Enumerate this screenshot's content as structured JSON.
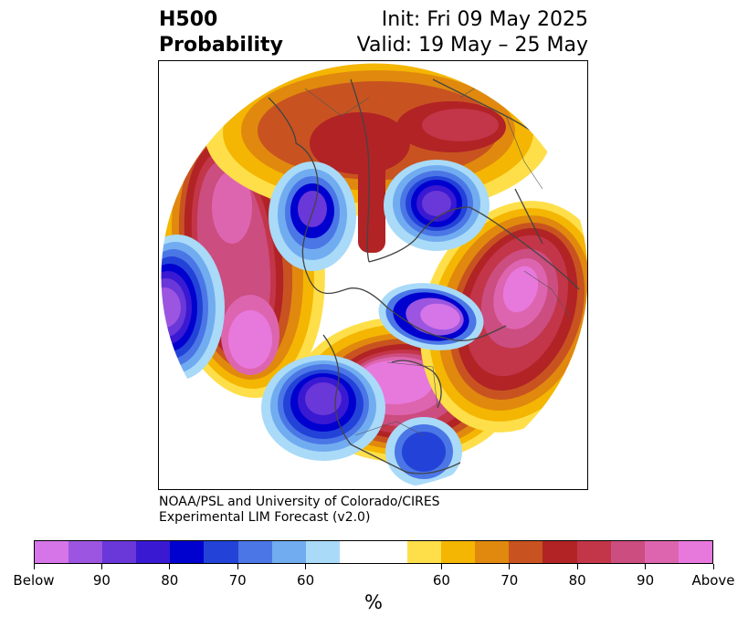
{
  "title": {
    "line1": "H500",
    "line2": "Probability"
  },
  "init": {
    "line1": "Init: Fri 09 May 2025",
    "line2": "Valid: 19 May – 25 May"
  },
  "credit": {
    "line1": "NOAA/PSL and University of Colorado/CIRES",
    "line2": "Experimental LIM Forecast (v2.0)"
  },
  "colorbar": {
    "unit": "%",
    "tick_labels": [
      "Below",
      "90",
      "80",
      "70",
      "60",
      "60",
      "70",
      "80",
      "90",
      "Above"
    ],
    "colors": [
      "#d575e8",
      "#9c55e0",
      "#6a37d8",
      "#3a19d3",
      "#0000cf",
      "#2343d8",
      "#4b76e6",
      "#71acf0",
      "#a9daf8",
      "#ffffff",
      "#fedf49",
      "#f4b602",
      "#e0890e",
      "#c85320",
      "#b12325",
      "#c33548",
      "#cc4d80",
      "#dd65b0",
      "#e779dd"
    ]
  },
  "map": {
    "projection": "north-polar-stereographic",
    "variable": "500 hPa height anomaly probability",
    "features": [
      {
        "sign": "above",
        "region": "Central Pacific",
        "peak": "Above"
      },
      {
        "sign": "above",
        "region": "Western North America",
        "peak": "Above"
      },
      {
        "sign": "above",
        "region": "Eastern Europe / Western Russia",
        "peak": "Above"
      },
      {
        "sign": "above",
        "region": "Siberia / Arctic",
        "peak": "80"
      },
      {
        "sign": "below",
        "region": "Eastern Pacific off California",
        "peak": "90"
      },
      {
        "sign": "below",
        "region": "Northern Canada / Greenland",
        "peak": "90"
      },
      {
        "sign": "below",
        "region": "Western Pacific",
        "peak": "90"
      },
      {
        "sign": "below",
        "region": "East Siberia",
        "peak": "90"
      },
      {
        "sign": "below",
        "region": "Western Europe",
        "peak": "80"
      }
    ]
  }
}
